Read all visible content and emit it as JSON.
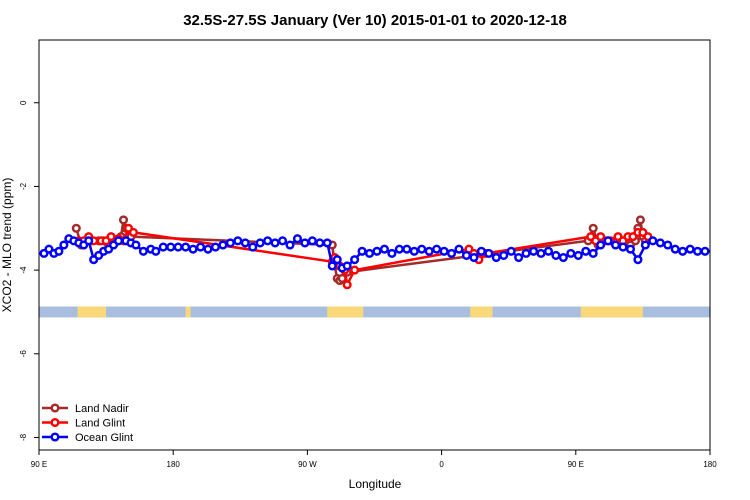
{
  "chart_data": {
    "type": "line",
    "title": "32.5S-27.5S January (Ver 10)   2015-01-01 to 2020-12-18",
    "xlabel": "Longitude",
    "ylabel": "XCO2 - MLO trend (ppm)",
    "xlim": [
      -90,
      180
    ],
    "ylim": [
      -8.3,
      1.5
    ],
    "x_ticks": [
      {
        "value": -90,
        "label": "90 E"
      },
      {
        "value": -36,
        "label": "180"
      },
      {
        "value": 18,
        "label": "90 W"
      },
      {
        "value": 72,
        "label": "0"
      },
      {
        "value": 126,
        "label": "90 E"
      },
      {
        "value": 180,
        "label": "180"
      }
    ],
    "y_ticks": [
      {
        "value": 0,
        "label": "0"
      },
      {
        "value": -2,
        "label": "-2"
      },
      {
        "value": -4,
        "label": "-4"
      },
      {
        "value": -6,
        "label": "-6"
      },
      {
        "value": -8,
        "label": "-8"
      }
    ],
    "grid": false,
    "legend_position": "bottom-left",
    "land_mask": {
      "y_range": [
        -5.13,
        -4.87
      ],
      "ocean_color": "#a9bedf",
      "land_color": "#f8d878",
      "land_segments": [
        [
          -74.5,
          -63
        ],
        [
          -31,
          -29
        ],
        [
          26,
          40.5
        ],
        [
          83.5,
          92.5
        ],
        [
          128,
          153
        ]
      ]
    },
    "series": [
      {
        "name": "Land Nadir",
        "color": "#a52a2a",
        "x": [
          -75,
          -73,
          -71,
          -69,
          -66,
          -64,
          -62,
          -60,
          -58,
          -57,
          -56,
          -55,
          -53,
          28,
          29,
          30,
          31,
          32,
          34,
          131,
          133,
          135,
          137,
          139,
          142,
          144,
          146,
          148,
          150,
          151,
          152,
          153,
          154
        ],
        "y": [
          -3.0,
          -3.4,
          -3.3,
          -3.3,
          -3.3,
          -3.3,
          -3.4,
          -3.35,
          -3.3,
          -3.2,
          -2.8,
          -3.0,
          -3.2,
          -3.4,
          -3.9,
          -4.2,
          -4.25,
          -4.2,
          -4.05,
          -3.3,
          -3.0,
          -3.4,
          -3.3,
          -3.3,
          -3.3,
          -3.3,
          -3.4,
          -3.4,
          -3.3,
          -3.0,
          -2.8,
          -3.2,
          -3.3
        ]
      },
      {
        "name": "Land Glint",
        "color": "#ff0000",
        "x": [
          -74,
          -72,
          -70,
          -68,
          -65,
          -63,
          -61,
          -58,
          -56,
          -54,
          -52,
          28,
          29,
          31,
          33,
          34,
          37,
          83,
          85,
          87,
          89,
          90,
          132,
          134,
          136,
          138,
          140,
          143,
          145,
          147,
          149,
          151,
          153,
          155
        ],
        "y": [
          -3.3,
          -3.3,
          -3.2,
          -3.3,
          -3.3,
          -3.3,
          -3.2,
          -3.25,
          -3.3,
          -3.0,
          -3.1,
          -3.8,
          -3.7,
          -3.9,
          -4.0,
          -4.35,
          -4.0,
          -3.5,
          -3.6,
          -3.75,
          -3.6,
          -3.6,
          -3.2,
          -3.3,
          -3.2,
          -3.3,
          -3.3,
          -3.2,
          -3.3,
          -3.2,
          -3.2,
          -3.1,
          -3.1,
          -3.2
        ]
      },
      {
        "name": "Ocean Glint",
        "color": "#0000ff",
        "x": [
          -88,
          -86,
          -84,
          -82,
          -80,
          -78,
          -76,
          -74,
          -72,
          -70,
          -68,
          -66,
          -64,
          -62,
          -60,
          -58,
          -55,
          -53,
          -51,
          -48,
          -45,
          -43,
          -40,
          -37,
          -34,
          -31,
          -28,
          -25,
          -22,
          -19,
          -16,
          -13,
          -10,
          -7,
          -4,
          -1,
          2,
          5,
          8,
          11,
          14,
          17,
          20,
          23,
          26,
          28,
          30,
          32,
          34,
          37,
          40,
          43,
          46,
          49,
          52,
          55,
          58,
          61,
          64,
          67,
          70,
          73,
          76,
          79,
          82,
          85,
          88,
          91,
          94,
          97,
          100,
          103,
          106,
          109,
          112,
          115,
          118,
          121,
          124,
          127,
          130,
          133,
          136,
          139,
          142,
          145,
          148,
          151,
          154,
          157,
          160,
          163,
          166,
          169,
          172,
          175,
          178
        ],
        "y": [
          -3.6,
          -3.5,
          -3.6,
          -3.55,
          -3.4,
          -3.25,
          -3.3,
          -3.35,
          -3.4,
          -3.3,
          -3.75,
          -3.65,
          -3.55,
          -3.5,
          -3.4,
          -3.3,
          -3.3,
          -3.35,
          -3.4,
          -3.55,
          -3.5,
          -3.55,
          -3.45,
          -3.45,
          -3.45,
          -3.45,
          -3.5,
          -3.45,
          -3.5,
          -3.45,
          -3.4,
          -3.35,
          -3.3,
          -3.35,
          -3.45,
          -3.35,
          -3.3,
          -3.35,
          -3.3,
          -3.4,
          -3.25,
          -3.35,
          -3.3,
          -3.35,
          -3.35,
          -3.9,
          -3.75,
          -3.95,
          -3.9,
          -3.75,
          -3.55,
          -3.6,
          -3.55,
          -3.5,
          -3.6,
          -3.5,
          -3.5,
          -3.55,
          -3.5,
          -3.55,
          -3.5,
          -3.55,
          -3.6,
          -3.5,
          -3.65,
          -3.7,
          -3.55,
          -3.6,
          -3.7,
          -3.65,
          -3.55,
          -3.7,
          -3.6,
          -3.55,
          -3.6,
          -3.55,
          -3.65,
          -3.7,
          -3.6,
          -3.65,
          -3.55,
          -3.6,
          -3.4,
          -3.3,
          -3.4,
          -3.45,
          -3.5,
          -3.75,
          -3.4,
          -3.3,
          -3.35,
          -3.4,
          -3.5,
          -3.55,
          -3.5,
          -3.55,
          -3.55
        ]
      }
    ]
  }
}
